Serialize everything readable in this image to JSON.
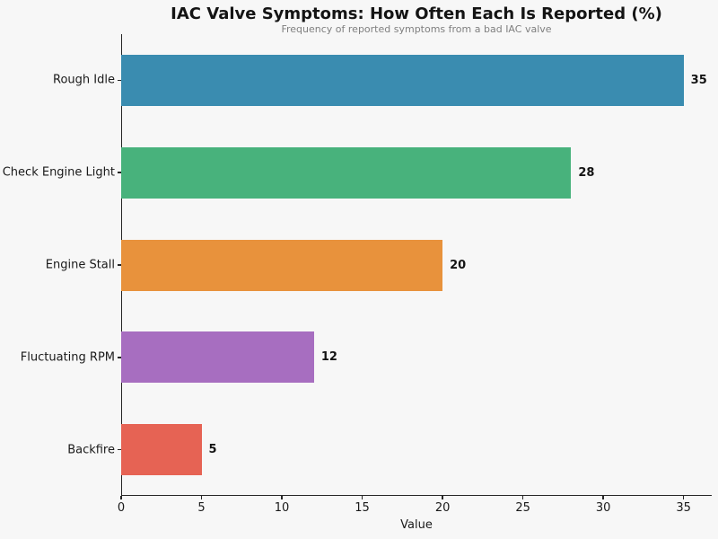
{
  "chart_data": {
    "type": "bar",
    "orientation": "horizontal",
    "title": "IAC Valve Symptoms: How Often Each Is Reported (%)",
    "subtitle": "Frequency of reported symptoms from a bad IAC valve",
    "xlabel": "Value",
    "ylabel": "",
    "categories": [
      "Rough Idle",
      "Check Engine Light",
      "Engine Stall",
      "Fluctuating RPM",
      "Backfire"
    ],
    "values": [
      35,
      28,
      20,
      12,
      5
    ],
    "value_labels": [
      "35",
      "28",
      "20",
      "12",
      "5"
    ],
    "bar_colors": [
      "#3a8cb0",
      "#48b27c",
      "#e8923c",
      "#a76ec0",
      "#e66354"
    ],
    "xticks": [
      0,
      5,
      10,
      15,
      20,
      25,
      30,
      35
    ],
    "xtick_labels": [
      "0",
      "5",
      "10",
      "15",
      "20",
      "25",
      "30",
      "35"
    ],
    "xlim": [
      0,
      36.75
    ],
    "grid": false,
    "legend": null,
    "background_color": "#f7f7f7",
    "spine_color": "#262626",
    "subtitle_color": "#7f7f7f"
  }
}
